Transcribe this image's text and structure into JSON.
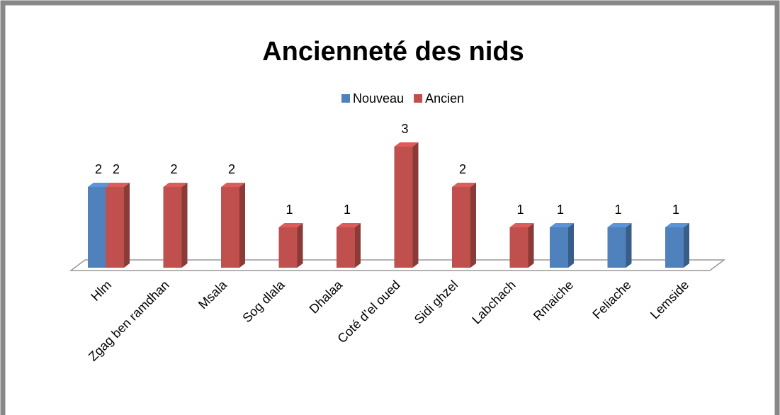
{
  "chart_data": {
    "type": "bar3d",
    "title": "Ancienneté des nids",
    "categories": [
      "Hlm",
      "Zgag ben ramdhan",
      "Msala",
      "Sog dlala",
      "Dhalaa",
      "Coté d’el oued",
      "Sidi ghzel",
      "Labchach",
      "Rmaiche",
      "Feliache",
      "Lemside"
    ],
    "series": [
      {
        "name": "Nouveau",
        "color": "#4f81bd",
        "values": [
          2,
          null,
          null,
          null,
          null,
          null,
          null,
          null,
          1,
          1,
          1
        ]
      },
      {
        "name": "Ancien",
        "color": "#c0504d",
        "values": [
          2,
          2,
          2,
          1,
          1,
          3,
          2,
          1,
          null,
          null,
          null
        ]
      }
    ],
    "ylim": [
      0,
      3
    ],
    "legend": "top"
  }
}
